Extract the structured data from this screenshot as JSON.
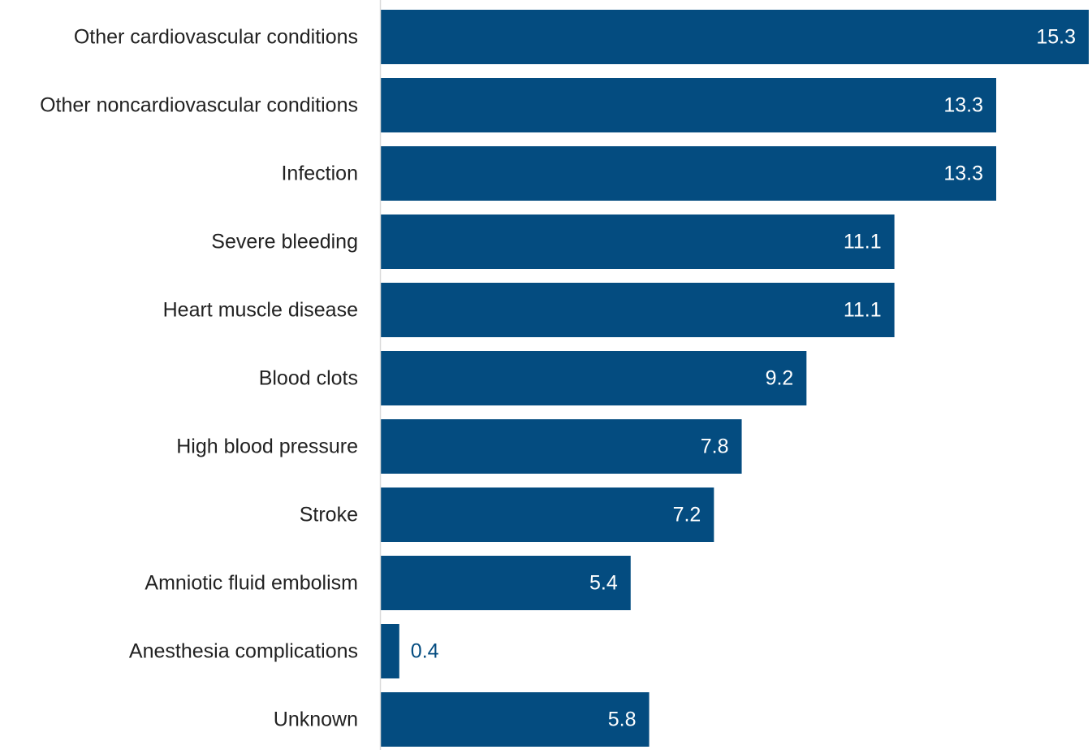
{
  "chart_data": {
    "type": "bar",
    "orientation": "horizontal",
    "categories": [
      "Other cardiovascular conditions",
      "Other noncardiovascular conditions",
      "Infection",
      "Severe bleeding",
      "Heart muscle disease",
      "Blood clots",
      "High blood pressure",
      "Stroke",
      "Amniotic fluid embolism",
      "Anesthesia complications",
      "Unknown"
    ],
    "values": [
      15.3,
      13.3,
      13.3,
      11.1,
      11.1,
      9.2,
      7.8,
      7.2,
      5.4,
      0.4,
      5.8
    ],
    "value_labels": [
      "15.3",
      "13.3",
      "13.3",
      "11.1",
      "11.1",
      "9.2",
      "7.8",
      "7.2",
      "5.4",
      "0.4",
      "5.8"
    ],
    "title": "",
    "xlabel": "",
    "ylabel": "",
    "xlim": [
      0,
      15.3
    ],
    "grid": false,
    "legend": "none"
  },
  "colors": {
    "bar": "#044c80",
    "label_text": "#222222",
    "value_text_inside": "#ffffff",
    "value_text_outside": "#044c80",
    "axis_line": "#d9d9d9",
    "background": "#ffffff"
  }
}
